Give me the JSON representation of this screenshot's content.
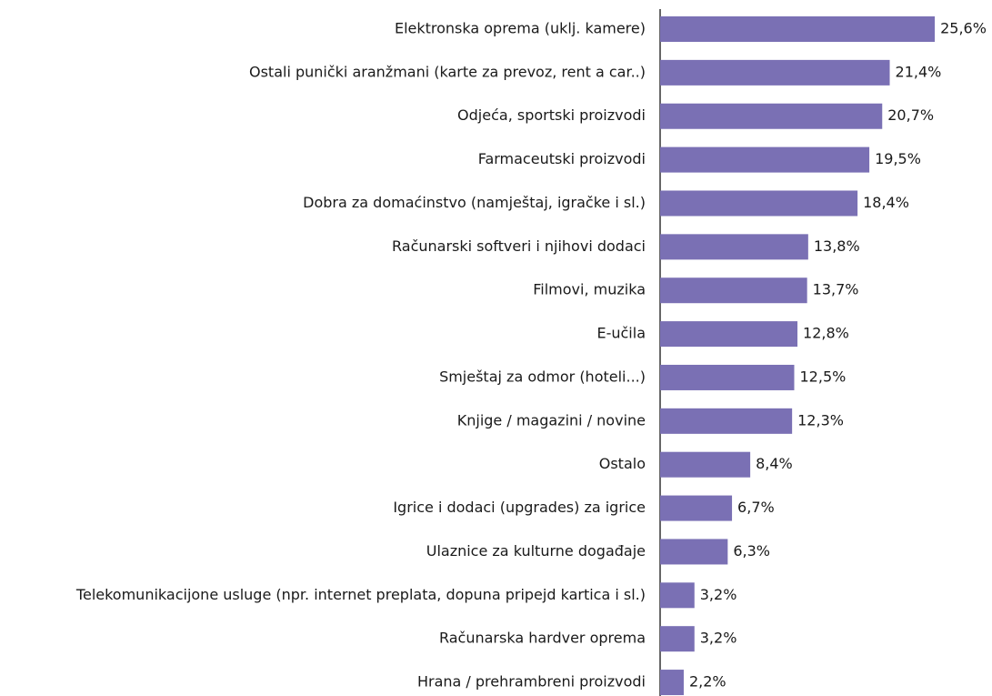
{
  "chart_data": {
    "type": "bar",
    "orientation": "horizontal",
    "color": "#7a70b4",
    "categories": [
      "Elektronska oprema (uklj. kamere)",
      "Ostali punički aranžmani (karte za prevoz, rent a car..)",
      "Odjeća, sportski proizvodi",
      "Farmaceutski proizvodi",
      "Dobra za domaćinstvo (namještaj, igračke i sl.)",
      "Računarski softveri i njihovi dodaci",
      "Filmovi, muzika",
      "E-učila",
      "Smještaj za odmor (hoteli...)",
      "Knjige / magazini / novine",
      "Ostalo",
      "Igrice i dodaci (upgrades) za igrice",
      "Ulaznice za kulturne događaje",
      "Telekomunikacijone usluge (npr. internet preplata, dopuna pripejd kartica i sl.)",
      "Računarska hardver oprema",
      "Hrana / prehrambreni proizvodi"
    ],
    "values": [
      25.6,
      21.4,
      20.7,
      19.5,
      18.4,
      13.8,
      13.7,
      12.8,
      12.5,
      12.3,
      8.4,
      6.7,
      6.3,
      3.2,
      3.2,
      2.2
    ],
    "value_labels": [
      "25,6%",
      "21,4%",
      "20,7%",
      "19,5%",
      "18,4%",
      "13,8%",
      "13,7%",
      "12,8%",
      "12,5%",
      "12,3%",
      "8,4%",
      "6,7%",
      "6,3%",
      "3,2%",
      "3,2%",
      "2,2%"
    ]
  }
}
